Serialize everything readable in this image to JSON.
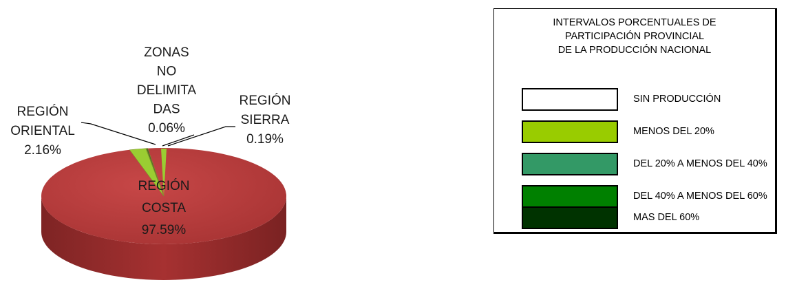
{
  "chart_data": {
    "type": "pie",
    "title": "",
    "slices": [
      {
        "name": "REGIÓN COSTA",
        "value": 97.59,
        "value_label": "97.59%",
        "color": "#B23A3A"
      },
      {
        "name": "REGIÓN ORIENTAL",
        "value": 2.16,
        "value_label": "2.16%",
        "color": "#9ACD32"
      },
      {
        "name": "ZONAS NO DELIMITADAS",
        "value": 0.06,
        "value_label": "0.06%",
        "color": "#6B8E23"
      },
      {
        "name": "REGIÓN SIERRA",
        "value": 0.19,
        "value_label": "0.19%",
        "color": "#4F6228"
      }
    ],
    "labels": {
      "costa": [
        "REGIÓN",
        "COSTA",
        "97.59%"
      ],
      "oriental": [
        "REGIÓN",
        "ORIENTAL",
        "2.16%"
      ],
      "zonas": [
        "ZONAS",
        "NO",
        "DELIMITA",
        "DAS",
        "0.06%"
      ],
      "sierra": [
        "REGIÓN",
        "SIERRA",
        "0.19%"
      ]
    },
    "style": "3d-pie"
  },
  "legend": {
    "title_lines": [
      "INTERVALOS PORCENTUALES DE",
      "PARTICIPACIÓN PROVINCIAL",
      "DE LA PRODUCCIÓN NACIONAL"
    ],
    "items": [
      {
        "label": "SIN PRODUCCIÓN",
        "color": "#FFFFFF"
      },
      {
        "label": "MENOS DEL 20%",
        "color": "#99CC00"
      },
      {
        "label": "DEL 20% A MENOS DEL 40%",
        "color": "#339966"
      },
      {
        "label": "DEL 40% A MENOS DEL 60%",
        "color": "#008000"
      },
      {
        "label": "MAS DEL 60%",
        "color": "#003300"
      }
    ]
  }
}
